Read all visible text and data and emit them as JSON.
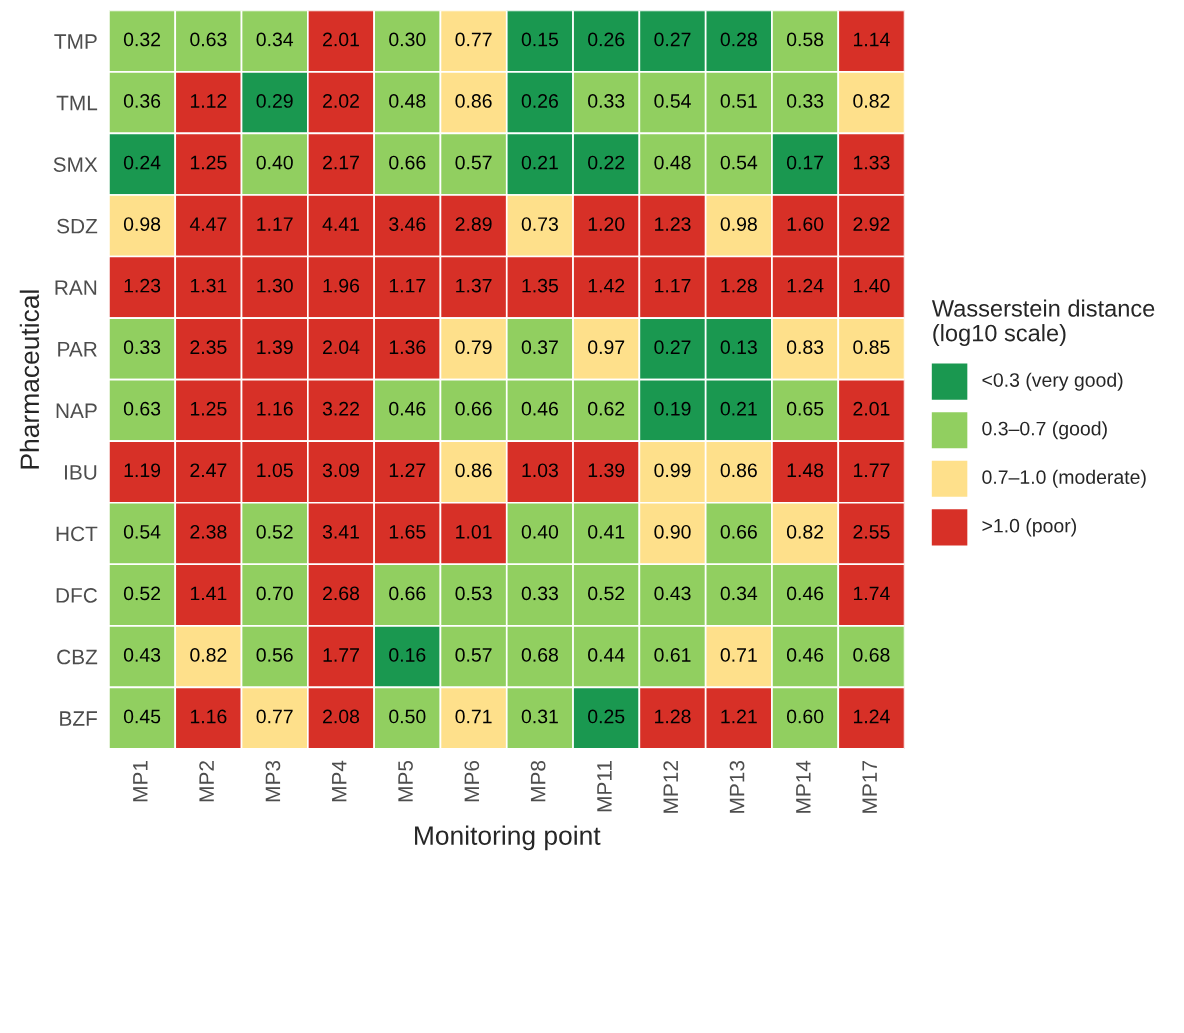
{
  "chart_data": {
    "type": "heatmap",
    "xlabel": "Monitoring point",
    "ylabel": "Pharmaceutical",
    "legend_title": "Wasserstein distance\n(log10 scale)",
    "data_labels": true,
    "annotations": [
      "<0.3 (very good)",
      "0.3–0.7 (good)",
      "0.7–1.0 (moderate)",
      ">1.0 (poor)"
    ],
    "categories": [
      "MP1",
      "MP2",
      "MP3",
      "MP4",
      "MP5",
      "MP6",
      "MP8",
      "MP11",
      "MP12",
      "MP13",
      "MP14",
      "MP17"
    ],
    "y_categories": [
      "TMP",
      "TML",
      "SMX",
      "SDZ",
      "RAN",
      "PAR",
      "NAP",
      "IBU",
      "HCT",
      "DFC",
      "CBZ",
      "BZF"
    ],
    "cells": [
      [
        0.32,
        0.63,
        0.34,
        2.01,
        0.3,
        0.77,
        0.15,
        0.26,
        0.27,
        0.28,
        0.58,
        1.14
      ],
      [
        0.36,
        1.12,
        0.29,
        2.02,
        0.48,
        0.86,
        0.26,
        0.33,
        0.54,
        0.51,
        0.33,
        0.82
      ],
      [
        0.24,
        1.25,
        0.4,
        2.17,
        0.66,
        0.57,
        0.21,
        0.22,
        0.48,
        0.54,
        0.17,
        1.33
      ],
      [
        0.98,
        4.47,
        1.17,
        4.41,
        3.46,
        2.89,
        0.73,
        1.2,
        1.23,
        0.98,
        1.6,
        2.92
      ],
      [
        1.23,
        1.31,
        1.3,
        1.96,
        1.17,
        1.37,
        1.35,
        1.42,
        1.17,
        1.28,
        1.24,
        1.4
      ],
      [
        0.33,
        2.35,
        1.39,
        2.04,
        1.36,
        0.79,
        0.37,
        0.97,
        0.27,
        0.13,
        0.83,
        0.85
      ],
      [
        0.63,
        1.25,
        1.16,
        3.22,
        0.46,
        0.66,
        0.46,
        0.62,
        0.19,
        0.21,
        0.65,
        2.01
      ],
      [
        1.19,
        2.47,
        1.05,
        3.09,
        1.27,
        0.86,
        1.03,
        1.39,
        0.99,
        0.86,
        1.48,
        1.77
      ],
      [
        0.54,
        2.38,
        0.52,
        3.41,
        1.65,
        1.01,
        0.4,
        0.41,
        0.9,
        0.66,
        0.82,
        2.55
      ],
      [
        0.52,
        1.41,
        0.7,
        2.68,
        0.66,
        0.53,
        0.33,
        0.52,
        0.43,
        0.34,
        0.46,
        1.74
      ],
      [
        0.43,
        0.82,
        0.56,
        1.77,
        0.16,
        0.57,
        0.68,
        0.44,
        0.61,
        0.71,
        0.46,
        0.68
      ],
      [
        0.45,
        1.16,
        0.77,
        2.08,
        0.5,
        0.71,
        0.31,
        0.25,
        1.28,
        1.21,
        0.6,
        1.24
      ]
    ],
    "cell_labels": [
      [
        "0.32",
        "0.63",
        "0.34",
        "2.01",
        "0.30",
        "0.77",
        "0.15",
        "0.26",
        "0.27",
        "0.28",
        "0.58",
        "1.14"
      ],
      [
        "0.36",
        "1.12",
        "0.29",
        "2.02",
        "0.48",
        "0.86",
        "0.26",
        "0.33",
        "0.54",
        "0.51",
        "0.33",
        "0.82"
      ],
      [
        "0.24",
        "1.25",
        "0.40",
        "2.17",
        "0.66",
        "0.57",
        "0.21",
        "0.22",
        "0.48",
        "0.54",
        "0.17",
        "1.33"
      ],
      [
        "0.98",
        "4.47",
        "1.17",
        "4.41",
        "3.46",
        "2.89",
        "0.73",
        "1.20",
        "1.23",
        "0.98",
        "1.60",
        "2.92"
      ],
      [
        "1.23",
        "1.31",
        "1.30",
        "1.96",
        "1.17",
        "1.37",
        "1.35",
        "1.42",
        "1.17",
        "1.28",
        "1.24",
        "1.40"
      ],
      [
        "0.33",
        "2.35",
        "1.39",
        "2.04",
        "1.36",
        "0.79",
        "0.37",
        "0.97",
        "0.27",
        "0.13",
        "0.83",
        "0.85"
      ],
      [
        "0.63",
        "1.25",
        "1.16",
        "3.22",
        "0.46",
        "0.66",
        "0.46",
        "0.62",
        "0.19",
        "0.21",
        "0.65",
        "2.01"
      ],
      [
        "1.19",
        "2.47",
        "1.05",
        "3.09",
        "1.27",
        "0.86",
        "1.03",
        "1.39",
        "0.99",
        "0.86",
        "1.48",
        "1.77"
      ],
      [
        "0.54",
        "2.38",
        "0.52",
        "3.41",
        "1.65",
        "1.01",
        "0.40",
        "0.41",
        "0.90",
        "0.66",
        "0.82",
        "2.55"
      ],
      [
        "0.52",
        "1.41",
        "0.70",
        "2.68",
        "0.66",
        "0.53",
        "0.33",
        "0.52",
        "0.43",
        "0.34",
        "0.46",
        "1.74"
      ],
      [
        "0.43",
        "0.82",
        "0.56",
        "1.77",
        "0.16",
        "0.57",
        "0.68",
        "0.44",
        "0.61",
        "0.71",
        "0.46",
        "0.68"
      ],
      [
        "0.45",
        "1.16",
        "0.77",
        "2.08",
        "0.50",
        "0.71",
        "0.31",
        "0.25",
        "1.28",
        "1.21",
        "0.60",
        "1.24"
      ]
    ],
    "colors": [
      [
        "#91cf60",
        "#91cf60",
        "#91cf60",
        "#d73027",
        "#91cf60",
        "#fee08b",
        "#1a9850",
        "#1a9850",
        "#1a9850",
        "#1a9850",
        "#91cf60",
        "#d73027"
      ],
      [
        "#91cf60",
        "#d73027",
        "#1a9850",
        "#d73027",
        "#91cf60",
        "#fee08b",
        "#1a9850",
        "#91cf60",
        "#91cf60",
        "#91cf60",
        "#91cf60",
        "#fee08b"
      ],
      [
        "#1a9850",
        "#d73027",
        "#91cf60",
        "#d73027",
        "#91cf60",
        "#91cf60",
        "#1a9850",
        "#1a9850",
        "#91cf60",
        "#91cf60",
        "#1a9850",
        "#d73027"
      ],
      [
        "#fee08b",
        "#d73027",
        "#d73027",
        "#d73027",
        "#d73027",
        "#d73027",
        "#fee08b",
        "#d73027",
        "#d73027",
        "#fee08b",
        "#d73027",
        "#d73027"
      ],
      [
        "#d73027",
        "#d73027",
        "#d73027",
        "#d73027",
        "#d73027",
        "#d73027",
        "#d73027",
        "#d73027",
        "#d73027",
        "#d73027",
        "#d73027",
        "#d73027"
      ],
      [
        "#91cf60",
        "#d73027",
        "#d73027",
        "#d73027",
        "#d73027",
        "#fee08b",
        "#91cf60",
        "#fee08b",
        "#1a9850",
        "#1a9850",
        "#fee08b",
        "#fee08b"
      ],
      [
        "#91cf60",
        "#d73027",
        "#d73027",
        "#d73027",
        "#91cf60",
        "#91cf60",
        "#91cf60",
        "#91cf60",
        "#1a9850",
        "#1a9850",
        "#91cf60",
        "#d73027"
      ],
      [
        "#d73027",
        "#d73027",
        "#d73027",
        "#d73027",
        "#d73027",
        "#fee08b",
        "#d73027",
        "#d73027",
        "#fee08b",
        "#fee08b",
        "#d73027",
        "#d73027"
      ],
      [
        "#91cf60",
        "#d73027",
        "#91cf60",
        "#d73027",
        "#d73027",
        "#d73027",
        "#91cf60",
        "#91cf60",
        "#fee08b",
        "#91cf60",
        "#fee08b",
        "#d73027"
      ],
      [
        "#91cf60",
        "#d73027",
        "#91cf60",
        "#d73027",
        "#91cf60",
        "#91cf60",
        "#91cf60",
        "#91cf60",
        "#91cf60",
        "#91cf60",
        "#91cf60",
        "#d73027"
      ],
      [
        "#91cf60",
        "#fee08b",
        "#91cf60",
        "#d73027",
        "#1a9850",
        "#91cf60",
        "#91cf60",
        "#91cf60",
        "#91cf60",
        "#fee08b",
        "#91cf60",
        "#91cf60"
      ],
      [
        "#91cf60",
        "#d73027",
        "#fee08b",
        "#d73027",
        "#91cf60",
        "#fee08b",
        "#91cf60",
        "#1a9850",
        "#d73027",
        "#d73027",
        "#91cf60",
        "#d73027"
      ]
    ]
  }
}
